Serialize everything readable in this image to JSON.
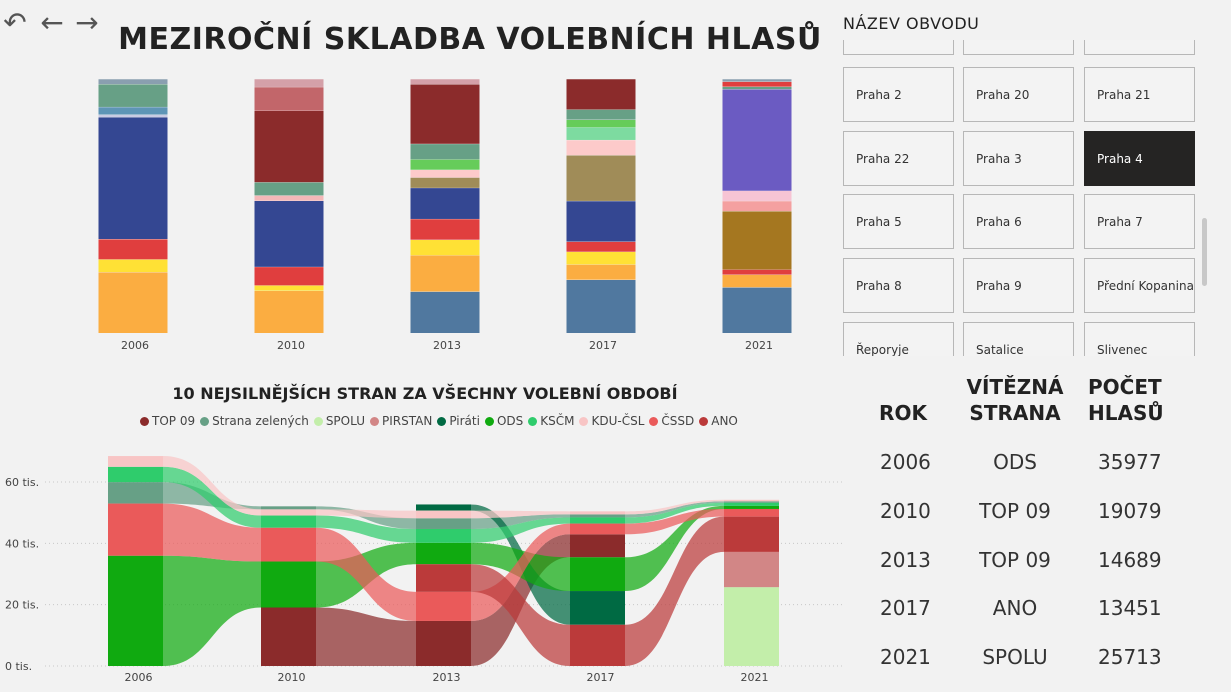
{
  "nav": {
    "undo_icon": "↶",
    "back_icon": "←",
    "forward_icon": "→"
  },
  "title": "MEZIROČNÍ SKLADBA VOLEBNÍCH HLASŮ",
  "slicer": {
    "title": "NÁZEV OBVODU",
    "items": [
      "",
      "",
      "",
      "Praha 2",
      "Praha 20",
      "Praha 21",
      "Praha 22",
      "Praha 3",
      "Praha 4",
      "Praha 5",
      "Praha 6",
      "Praha 7",
      "Praha 8",
      "Praha 9",
      "Přední Kopanina",
      "Řeporyje",
      "Satalice",
      "Slivenec"
    ],
    "selected": "Praha 4"
  },
  "chart_data": [
    {
      "type": "bar",
      "stacked": true,
      "normalized": true,
      "categories": [
        "2006",
        "2010",
        "2013",
        "2017",
        "2021"
      ],
      "segments_bottom_to_top": [
        [
          {
            "color": "#fbad41",
            "value": 0.24
          },
          {
            "color": "#ffe135",
            "value": 0.05
          },
          {
            "color": "#e03e3e",
            "value": 0.08
          },
          {
            "color": "#344792",
            "value": 0.48
          },
          {
            "color": "#c9cbe3",
            "value": 0.01
          },
          {
            "color": "#5e95b6",
            "value": 0.03
          },
          {
            "color": "#67a086",
            "value": 0.09
          },
          {
            "color": "#8a9fb0",
            "value": 0.02
          }
        ],
        [
          {
            "color": "#fbad41",
            "value": 0.16
          },
          {
            "color": "#ffe135",
            "value": 0.02
          },
          {
            "color": "#e03e3e",
            "value": 0.07
          },
          {
            "color": "#344792",
            "value": 0.25
          },
          {
            "color": "#f4b8b8",
            "value": 0.02
          },
          {
            "color": "#67a086",
            "value": 0.05
          },
          {
            "color": "#8b2b2b",
            "value": 0.27
          },
          {
            "color": "#c2666a",
            "value": 0.09
          },
          {
            "color": "#d4a0a8",
            "value": 0.03
          }
        ],
        [
          {
            "color": "#50789f",
            "value": 0.16
          },
          {
            "color": "#fbad41",
            "value": 0.14
          },
          {
            "color": "#ffe135",
            "value": 0.06
          },
          {
            "color": "#e03e3e",
            "value": 0.08
          },
          {
            "color": "#344792",
            "value": 0.12
          },
          {
            "color": "#a08c58",
            "value": 0.04
          },
          {
            "color": "#fdcaca",
            "value": 0.03
          },
          {
            "color": "#66cc5a",
            "value": 0.04
          },
          {
            "color": "#67a086",
            "value": 0.06
          },
          {
            "color": "#8b2b2b",
            "value": 0.23
          },
          {
            "color": "#d4a0a8",
            "value": 0.02
          }
        ],
        [
          {
            "color": "#50789f",
            "value": 0.21
          },
          {
            "color": "#fbad41",
            "value": 0.06
          },
          {
            "color": "#ffe135",
            "value": 0.05
          },
          {
            "color": "#e03e3e",
            "value": 0.04
          },
          {
            "color": "#344792",
            "value": 0.16
          },
          {
            "color": "#a08c58",
            "value": 0.18
          },
          {
            "color": "#fdcaca",
            "value": 0.06
          },
          {
            "color": "#7ddba0",
            "value": 0.05
          },
          {
            "color": "#66cc5a",
            "value": 0.03
          },
          {
            "color": "#67a086",
            "value": 0.04
          },
          {
            "color": "#8b2b2b",
            "value": 0.12
          }
        ],
        [
          {
            "color": "#50789f",
            "value": 0.18
          },
          {
            "color": "#fbad41",
            "value": 0.05
          },
          {
            "color": "#e03e3e",
            "value": 0.02
          },
          {
            "color": "#a57720",
            "value": 0.23
          },
          {
            "color": "#f4a0a0",
            "value": 0.04
          },
          {
            "color": "#f7c4d4",
            "value": 0.04
          },
          {
            "color": "#6b5bc2",
            "value": 0.4
          },
          {
            "color": "#67a086",
            "value": 0.01
          },
          {
            "color": "#e03e3e",
            "value": 0.02
          },
          {
            "color": "#8a9fb0",
            "value": 0.01
          }
        ]
      ]
    },
    {
      "type": "area",
      "subtype": "ribbon",
      "title": "10 NEJSILNĚJŠÍCH STRAN ZA VŠECHNY VOLEBNÍ OBDOBÍ",
      "x": [
        "2006",
        "2010",
        "2013",
        "2017",
        "2021"
      ],
      "ylim": [
        0,
        70000
      ],
      "yticks": [
        {
          "value": 0,
          "label": "0 tis."
        },
        {
          "value": 20000,
          "label": "20 tis."
        },
        {
          "value": 40000,
          "label": "40 tis."
        },
        {
          "value": 60000,
          "label": "60 tis."
        }
      ],
      "legend_position": "top",
      "series": [
        {
          "name": "TOP 09",
          "color": "#8b2b2b",
          "values": [
            0,
            19079,
            14689,
            7500,
            0
          ]
        },
        {
          "name": "Strana zelených",
          "color": "#67a086",
          "values": [
            7000,
            1000,
            3500,
            1000,
            500
          ]
        },
        {
          "name": "SPOLU",
          "color": "#c3eeaa",
          "values": [
            0,
            0,
            0,
            0,
            25713
          ]
        },
        {
          "name": "PIRSTAN",
          "color": "#d28686",
          "values": [
            0,
            0,
            0,
            0,
            11500
          ]
        },
        {
          "name": "Piráti",
          "color": "#006a43",
          "values": [
            0,
            0,
            2000,
            11000,
            0
          ]
        },
        {
          "name": "ODS",
          "color": "#10aa10",
          "values": [
            35977,
            15000,
            7000,
            11000,
            1000
          ]
        },
        {
          "name": "KSČM",
          "color": "#2fcc6c",
          "values": [
            5000,
            4000,
            4500,
            2000,
            1000
          ]
        },
        {
          "name": "KDU-ČSL",
          "color": "#f8c5c5",
          "values": [
            3500,
            2000,
            2500,
            1000,
            500
          ]
        },
        {
          "name": "ČSSD",
          "color": "#ea5a5a",
          "values": [
            17000,
            11000,
            9500,
            3500,
            2500
          ]
        },
        {
          "name": "ANO",
          "color": "#bb3a3a",
          "values": [
            0,
            0,
            9000,
            13451,
            11500
          ]
        }
      ]
    }
  ],
  "winners_table": {
    "headers": {
      "year": "ROK",
      "party_1": "VÍTĚZNÁ",
      "party_2": "STRANA",
      "votes_1": "POČET",
      "votes_2": "HLASŮ"
    },
    "rows": [
      {
        "year": "2006",
        "party": "ODS",
        "votes": "35977"
      },
      {
        "year": "2010",
        "party": "TOP 09",
        "votes": "19079"
      },
      {
        "year": "2013",
        "party": "TOP 09",
        "votes": "14689"
      },
      {
        "year": "2017",
        "party": "ANO",
        "votes": "13451"
      },
      {
        "year": "2021",
        "party": "SPOLU",
        "votes": "25713"
      }
    ]
  }
}
